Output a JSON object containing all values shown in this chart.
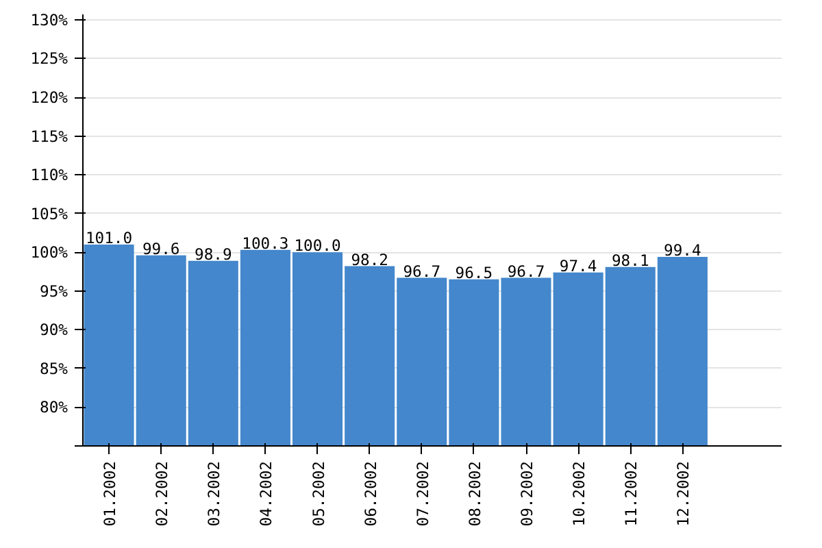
{
  "chart_data": {
    "type": "bar",
    "categories": [
      "01.2002",
      "02.2002",
      "03.2002",
      "04.2002",
      "05.2002",
      "06.2002",
      "07.2002",
      "08.2002",
      "09.2002",
      "10.2002",
      "11.2002",
      "12.2002"
    ],
    "values": [
      101.0,
      99.6,
      98.9,
      100.3,
      100.0,
      98.2,
      96.7,
      96.5,
      96.7,
      97.4,
      98.1,
      99.4
    ],
    "color": "#4487cc",
    "ylim": [
      75,
      130.7
    ],
    "yticks": [
      {
        "value": 75,
        "label": null
      },
      {
        "value": 80,
        "label": "80%"
      },
      {
        "value": 85,
        "label": "85%"
      },
      {
        "value": 90,
        "label": "90%"
      },
      {
        "value": 95,
        "label": "95%"
      },
      {
        "value": 100,
        "label": "100%"
      },
      {
        "value": 105,
        "label": "105%"
      },
      {
        "value": 110,
        "label": "110%"
      },
      {
        "value": 115,
        "label": "115%"
      },
      {
        "value": 120,
        "label": "120%"
      },
      {
        "value": 125,
        "label": "125%"
      },
      {
        "value": 130,
        "label": "130%"
      }
    ],
    "value_labels": [
      "101.0",
      "99.6",
      "98.9",
      "100.3",
      "100.0",
      "98.2",
      "96.7",
      "96.5",
      "96.7",
      "97.4",
      "98.1",
      "99.4"
    ],
    "grid": "y"
  }
}
